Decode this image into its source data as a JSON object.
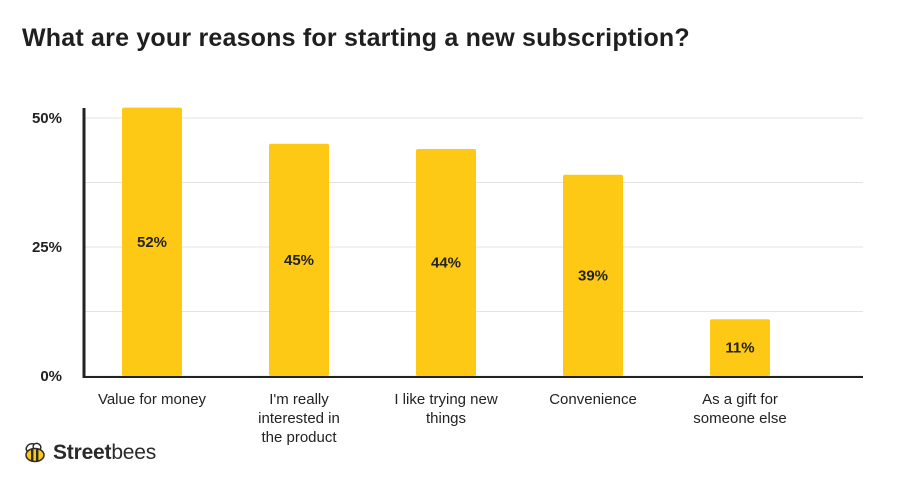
{
  "chart_data": {
    "type": "bar",
    "title": "What are your reasons for starting a new subscription?",
    "categories": [
      "Value for money",
      "I'm really interested in the product",
      "I like trying new things",
      "Convenience",
      "As a gift for someone else"
    ],
    "category_lines": [
      [
        "Value for money"
      ],
      [
        "I'm really",
        "interested in",
        "the product"
      ],
      [
        "I like trying new",
        "things"
      ],
      [
        "Convenience"
      ],
      [
        "As a gift for",
        "someone else"
      ]
    ],
    "values": [
      52,
      45,
      44,
      39,
      11
    ],
    "value_labels": [
      "52%",
      "45%",
      "44%",
      "39%",
      "11%"
    ],
    "ylim": [
      0,
      50
    ],
    "yticks": [
      {
        "value": 0,
        "label": "0%"
      },
      {
        "value": 25,
        "label": "25%"
      },
      {
        "value": 50,
        "label": "50%"
      }
    ],
    "gridlines": [
      0,
      12.5,
      25,
      37.5,
      50
    ],
    "grid": true,
    "legend": "none",
    "xlabel": "",
    "ylabel": "",
    "colors": {
      "bar": "#FDC914",
      "grid": "#e3e3e3",
      "axis": "#222222"
    }
  },
  "brand": {
    "logo_icon": "bee-icon",
    "name_bold": "Street",
    "name_regular": "bees"
  }
}
